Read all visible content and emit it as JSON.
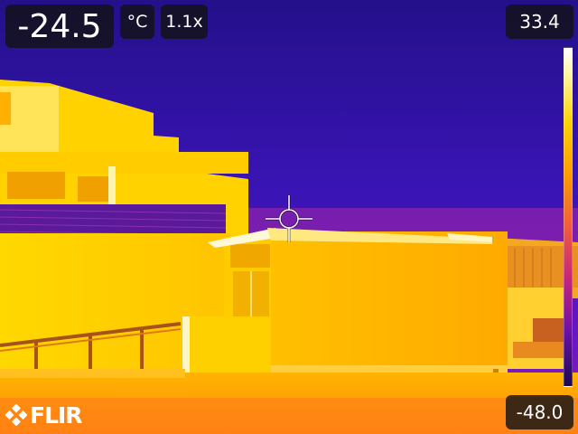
{
  "overlay": {
    "spot_temperature": "-24.5",
    "unit": "°C",
    "zoom": "1.1x",
    "scale_max": "33.4",
    "scale_min": "-48.0",
    "brand": "FLIR"
  },
  "icons": {
    "crosshair": "crosshair-icon",
    "logo": "flir-logo-icon"
  },
  "colors": {
    "sky": "#3a12b0",
    "warm": "#ffd400",
    "hot": "#fff4b0",
    "chip_bg": "#121216"
  }
}
